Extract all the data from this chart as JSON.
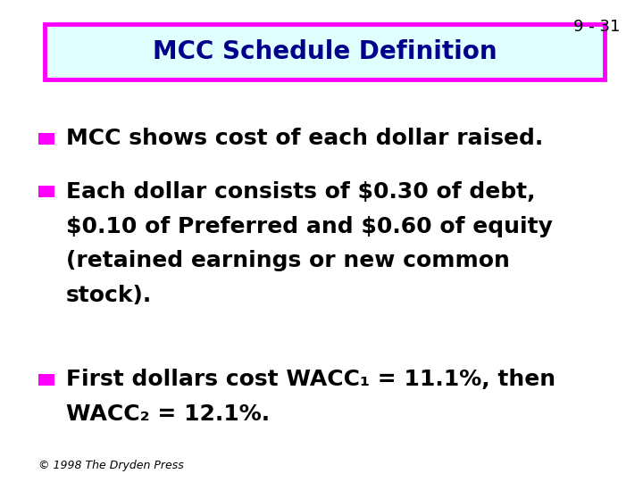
{
  "slide_number": "9 - 31",
  "title": "MCC Schedule Definition",
  "title_bg_color": "#e0ffff",
  "title_border_color": "#ff00ff",
  "title_text_color": "#00008B",
  "bullet_color": "#ff00ff",
  "text_color": "#000000",
  "bg_color": "#ffffff",
  "bullet1": "MCC shows cost of each dollar raised.",
  "bullet2_line1": "Each dollar consists of $0.30 of debt,",
  "bullet2_line2": "$0.10 of Preferred and $0.60 of equity",
  "bullet2_line3": "(retained earnings or new common",
  "bullet2_line4": "stock).",
  "bullet3_line1_a": "First dollars cost WACC",
  "bullet3_line1_sub": "1",
  "bullet3_line1_b": " = 11.1%, then",
  "bullet3_line2_a": "WACC",
  "bullet3_line2_sub": "2",
  "bullet3_line2_b": " = 12.1%.",
  "footer": "© 1998 The Dryden Press",
  "slide_num_fontsize": 13,
  "title_fontsize": 20,
  "bullet_fontsize": 18,
  "footer_fontsize": 9
}
